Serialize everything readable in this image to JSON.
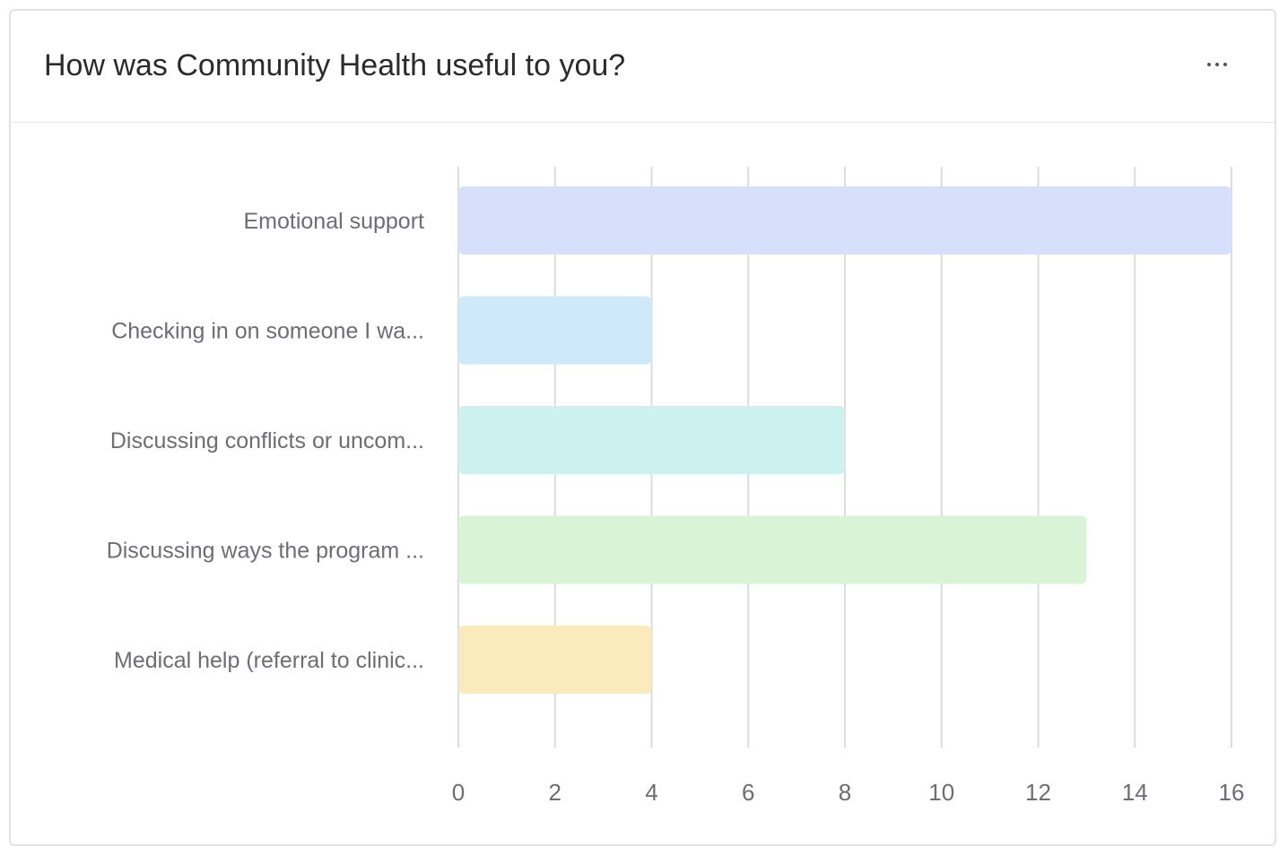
{
  "header": {
    "title": "How was Community Health useful to you?",
    "menu_icon": "more-horizontal-icon"
  },
  "chart_data": {
    "type": "bar",
    "orientation": "horizontal",
    "title": "How was Community Health useful to you?",
    "categories": [
      "Emotional support",
      "Checking in on someone I wa...",
      "Discussing conflicts or uncom...",
      "Discussing ways the program ...",
      "Medical help (referral to clinic..."
    ],
    "values": [
      16,
      4,
      8,
      13,
      4
    ],
    "colors": [
      "#d6e0fb",
      "#cfe8fa",
      "#cdf1ee",
      "#d8f3d6",
      "#faeabc"
    ],
    "xlim": [
      0,
      16
    ],
    "xticks": [
      "0",
      "2",
      "4",
      "6",
      "8",
      "10",
      "12",
      "14",
      "16"
    ],
    "grid": true,
    "legend": "none",
    "xlabel": "",
    "ylabel": ""
  }
}
